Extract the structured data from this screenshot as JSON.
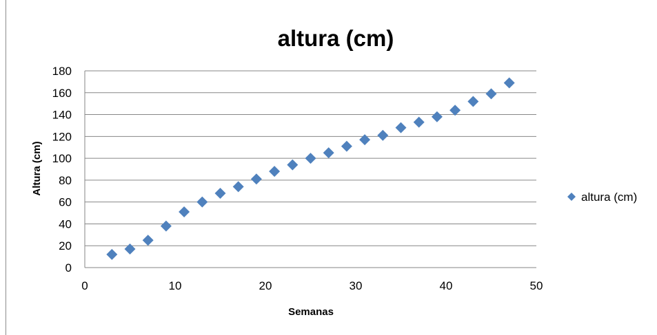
{
  "chart_data": {
    "type": "scatter",
    "title": "altura (cm)",
    "xlabel": "Semanas",
    "ylabel": "Altura (cm)",
    "xlim": [
      0,
      50
    ],
    "ylim": [
      0,
      180
    ],
    "xticks": [
      0,
      10,
      20,
      30,
      40,
      50
    ],
    "yticks": [
      0,
      20,
      40,
      60,
      80,
      100,
      120,
      140,
      160,
      180
    ],
    "grid": "horizontal",
    "legend_position": "right",
    "series": [
      {
        "name": "altura (cm)",
        "color": "#4f81bd",
        "marker": "diamond",
        "x": [
          3,
          5,
          7,
          9,
          11,
          13,
          15,
          17,
          19,
          21,
          23,
          25,
          27,
          29,
          31,
          33,
          35,
          37,
          39,
          41,
          43,
          45,
          47
        ],
        "y": [
          12,
          17,
          25,
          38,
          51,
          60,
          68,
          74,
          81,
          88,
          94,
          100,
          105,
          111,
          117,
          121,
          128,
          133,
          138,
          144,
          152,
          159,
          169
        ]
      }
    ]
  }
}
